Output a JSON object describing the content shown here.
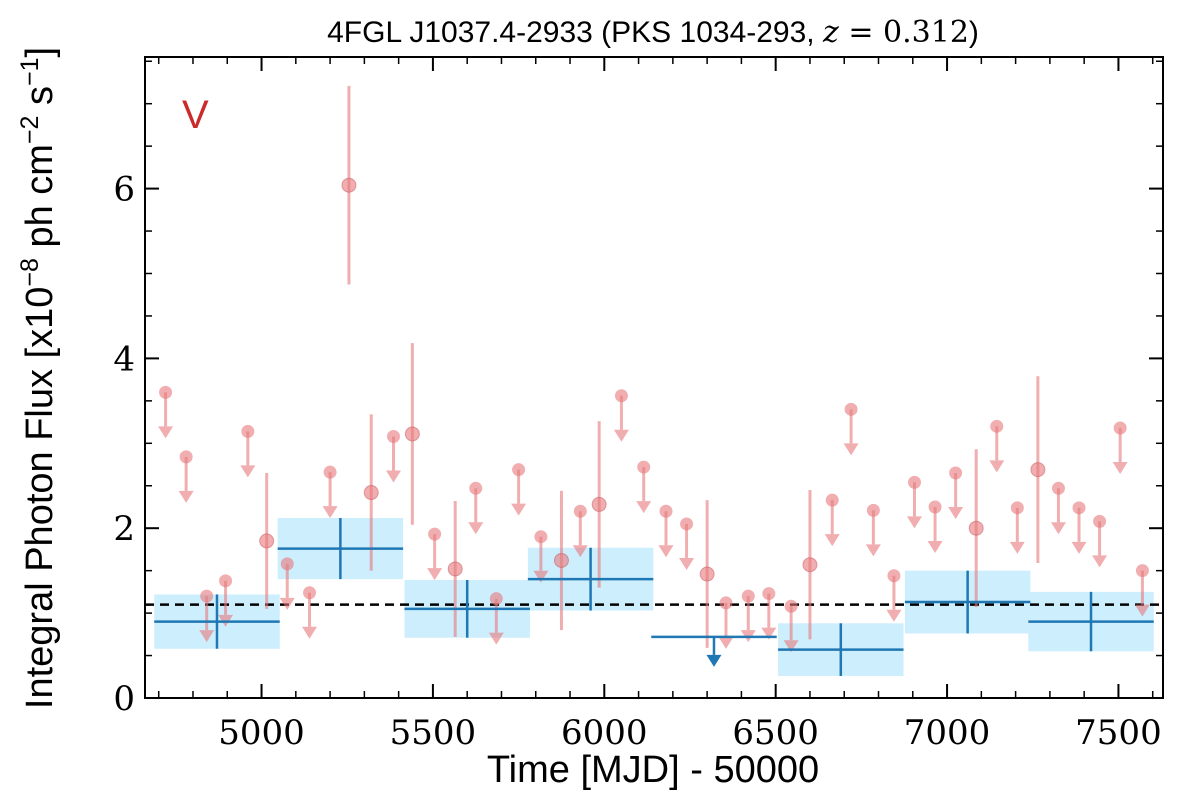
{
  "chart_data": {
    "type": "scatter",
    "title": "4FGL J1037.4-2933 (PKS 1034-293, z = 0.312)",
    "xlabel": "Time [MJD] - 50000",
    "ylabel": "Integral Photon Flux [x10^-8 ph cm^-2 s^-1]",
    "panel_label": "V",
    "xlim": [
      4660,
      7630
    ],
    "ylim": [
      0,
      7.55
    ],
    "x_ticks": [
      5000,
      5500,
      6000,
      6500,
      7000,
      7500
    ],
    "x_tick_labels": [
      "5000",
      "5500",
      "6000",
      "6500",
      "7000",
      "7500"
    ],
    "y_ticks": [
      0,
      2,
      4,
      6
    ],
    "y_tick_labels": [
      "0",
      "2",
      "4",
      "6"
    ],
    "mean_flux": 1.1,
    "colors": {
      "short_bins": "#e8787c",
      "long_bins": "#1f77b4",
      "long_bin_band": "#cdeefc",
      "mean_line": "#000000",
      "panel_label": "#cc2a2a"
    },
    "series": [
      {
        "bin": "long",
        "detections": [
          {
            "x": 4870,
            "y": 0.9,
            "xerr": 183,
            "yerr": 0.32
          },
          {
            "x": 5230,
            "y": 1.76,
            "xerr": 183,
            "yerr": 0.36
          },
          {
            "x": 5600,
            "y": 1.05,
            "xerr": 183,
            "yerr": 0.34
          },
          {
            "x": 5960,
            "y": 1.4,
            "xerr": 183,
            "yerr": 0.37
          },
          {
            "x": 6690,
            "y": 0.57,
            "xerr": 183,
            "yerr": 0.31
          },
          {
            "x": 7060,
            "y": 1.13,
            "xerr": 183,
            "yerr": 0.37
          },
          {
            "x": 7420,
            "y": 0.9,
            "xerr": 183,
            "yerr": 0.35
          }
        ],
        "upper_limits": [
          {
            "x": 6320,
            "y": 0.72,
            "xerr": 183
          }
        ]
      },
      {
        "bin": "short",
        "detections": [
          {
            "x": 5015,
            "y": 1.85,
            "yerr": 0.8
          },
          {
            "x": 5255,
            "y": 6.04,
            "yerr": 1.17
          },
          {
            "x": 5320,
            "y": 2.42,
            "yerr": 0.92
          },
          {
            "x": 5440,
            "y": 3.11,
            "yerr": 1.07
          },
          {
            "x": 5565,
            "y": 1.52,
            "yerr": 0.8
          },
          {
            "x": 5875,
            "y": 1.62,
            "yerr": 0.82
          },
          {
            "x": 5985,
            "y": 2.28,
            "yerr": 0.98
          },
          {
            "x": 6300,
            "y": 1.46,
            "yerr": 0.87
          },
          {
            "x": 6600,
            "y": 1.57,
            "yerr": 0.88
          },
          {
            "x": 7085,
            "y": 2.0,
            "yerr": 0.93
          },
          {
            "x": 7265,
            "y": 2.69,
            "yerr": 1.1
          }
        ],
        "upper_limits": [
          {
            "x": 4720,
            "y": 3.6
          },
          {
            "x": 4780,
            "y": 2.84
          },
          {
            "x": 4840,
            "y": 1.2
          },
          {
            "x": 4895,
            "y": 1.38
          },
          {
            "x": 4960,
            "y": 3.14
          },
          {
            "x": 5075,
            "y": 1.58
          },
          {
            "x": 5140,
            "y": 1.24
          },
          {
            "x": 5200,
            "y": 2.66
          },
          {
            "x": 5385,
            "y": 3.08
          },
          {
            "x": 5505,
            "y": 1.93
          },
          {
            "x": 5625,
            "y": 2.47
          },
          {
            "x": 5685,
            "y": 1.17
          },
          {
            "x": 5750,
            "y": 2.69
          },
          {
            "x": 5815,
            "y": 1.9
          },
          {
            "x": 5930,
            "y": 2.2
          },
          {
            "x": 6050,
            "y": 3.56
          },
          {
            "x": 6115,
            "y": 2.72
          },
          {
            "x": 6180,
            "y": 2.2
          },
          {
            "x": 6240,
            "y": 2.05
          },
          {
            "x": 6355,
            "y": 1.12
          },
          {
            "x": 6420,
            "y": 1.2
          },
          {
            "x": 6480,
            "y": 1.23
          },
          {
            "x": 6545,
            "y": 1.08
          },
          {
            "x": 6665,
            "y": 2.33
          },
          {
            "x": 6720,
            "y": 3.4
          },
          {
            "x": 6785,
            "y": 2.21
          },
          {
            "x": 6845,
            "y": 1.44
          },
          {
            "x": 6905,
            "y": 2.54
          },
          {
            "x": 6965,
            "y": 2.25
          },
          {
            "x": 7025,
            "y": 2.65
          },
          {
            "x": 7145,
            "y": 3.2
          },
          {
            "x": 7205,
            "y": 2.24
          },
          {
            "x": 7325,
            "y": 2.47
          },
          {
            "x": 7385,
            "y": 2.24
          },
          {
            "x": 7445,
            "y": 2.08
          },
          {
            "x": 7505,
            "y": 3.18
          },
          {
            "x": 7570,
            "y": 1.5
          }
        ]
      }
    ]
  }
}
